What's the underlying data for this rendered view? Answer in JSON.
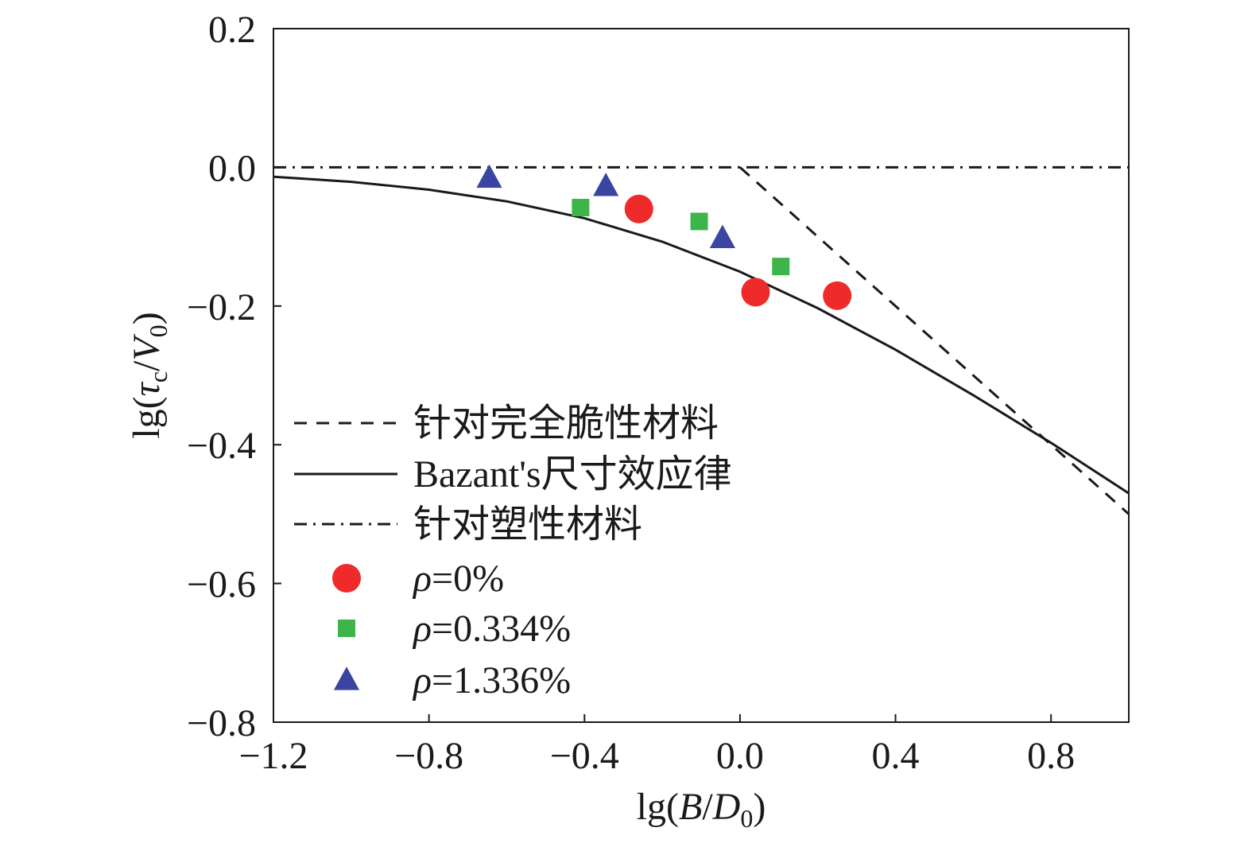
{
  "chart_data": {
    "type": "scatter",
    "title": "",
    "xlabel": "lg(B/D0)",
    "ylabel": "lg(τc/V0)",
    "xlim": [
      -1.2,
      1.0
    ],
    "ylim": [
      -0.8,
      0.2
    ],
    "xticks": [
      -1.2,
      -0.8,
      -0.4,
      0.0,
      0.4,
      0.8
    ],
    "xtick_labels": [
      "−1.2",
      "−0.8",
      "−0.4",
      "0.0",
      "0.4",
      "0.8"
    ],
    "yticks": [
      0.2,
      0.0,
      -0.2,
      -0.4,
      -0.6,
      -0.8
    ],
    "ytick_labels": [
      "0.2",
      "0.0",
      "−0.2",
      "−0.4",
      "−0.6",
      "−0.8"
    ],
    "grid": false,
    "legend_position": "lower-left",
    "lines": [
      {
        "name": "针对完全脆性材料",
        "style": "dashed",
        "color": "#1a1a1a",
        "x": [
          0.0,
          1.0
        ],
        "y": [
          0.0,
          -0.5
        ]
      },
      {
        "name": "Bazant's尺寸效应律",
        "style": "solid",
        "color": "#1a1a1a",
        "x": [
          -1.2,
          -1.0,
          -0.8,
          -0.6,
          -0.4,
          -0.2,
          0.0,
          0.2,
          0.4,
          0.6,
          0.8,
          1.0
        ],
        "y": [
          -0.0135,
          -0.0209,
          -0.0322,
          -0.0491,
          -0.0734,
          -0.1072,
          -0.1505,
          -0.2031,
          -0.263,
          -0.3285,
          -0.3972,
          -0.47
        ]
      },
      {
        "name": "针对塑性材料",
        "style": "dashdot",
        "color": "#1a1a1a",
        "x": [
          -1.2,
          1.0
        ],
        "y": [
          0.0,
          0.0
        ]
      }
    ],
    "series": [
      {
        "name": "ρ=0%",
        "marker": "circle",
        "color": "#ee2a2a",
        "points": [
          [
            -0.26,
            -0.06
          ],
          [
            0.04,
            -0.18
          ],
          [
            0.25,
            -0.185
          ]
        ]
      },
      {
        "name": "ρ=0.334%",
        "marker": "square",
        "color": "#3eb54a",
        "points": [
          [
            -0.41,
            -0.058
          ],
          [
            -0.105,
            -0.078
          ],
          [
            0.105,
            -0.143
          ]
        ]
      },
      {
        "name": "ρ=1.336%",
        "marker": "triangle",
        "color": "#3a45a2",
        "points": [
          [
            -0.645,
            -0.015
          ],
          [
            -0.345,
            -0.027
          ],
          [
            -0.045,
            -0.102
          ]
        ]
      }
    ]
  }
}
